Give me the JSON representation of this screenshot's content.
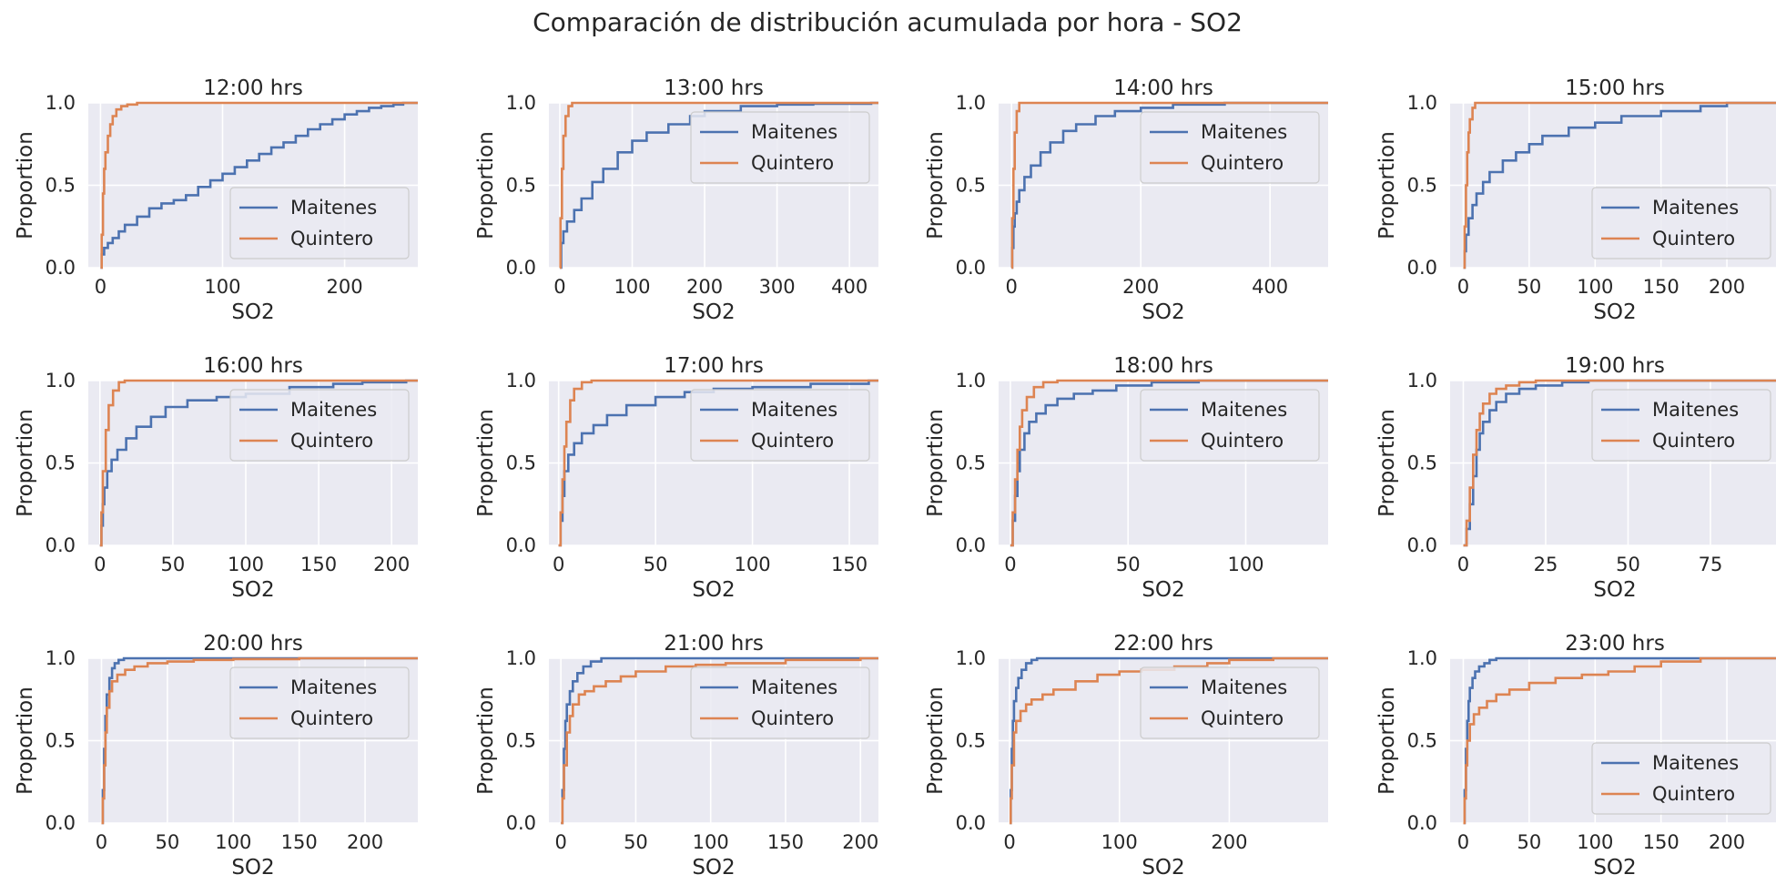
{
  "suptitle": "Comparación de distribución acumulada por hora - SO2",
  "colors": {
    "Maitenes": "#4c72b0",
    "Quintero": "#dd8452",
    "panel_bg": "#eaeaf2",
    "grid": "#ffffff"
  },
  "chart_data": [
    {
      "type": "line",
      "title": "12:00 hrs",
      "xlabel": "SO2",
      "ylabel": "Proportion",
      "xlim": [
        -10,
        260
      ],
      "xticks": [
        0,
        100,
        200
      ],
      "ylim": [
        0,
        1
      ],
      "yticks": [
        0.0,
        0.5,
        1.0
      ],
      "grid": true,
      "legend": "lower-right",
      "series": [
        {
          "name": "Maitenes",
          "x": [
            0,
            1,
            3,
            6,
            10,
            15,
            20,
            30,
            40,
            50,
            60,
            70,
            80,
            90,
            100,
            110,
            120,
            130,
            140,
            150,
            160,
            170,
            180,
            190,
            200,
            210,
            220,
            230,
            240,
            248
          ],
          "y": [
            0,
            0.08,
            0.12,
            0.15,
            0.18,
            0.22,
            0.26,
            0.31,
            0.36,
            0.39,
            0.41,
            0.44,
            0.49,
            0.53,
            0.57,
            0.61,
            0.65,
            0.69,
            0.73,
            0.76,
            0.8,
            0.84,
            0.87,
            0.9,
            0.93,
            0.95,
            0.97,
            0.98,
            0.99,
            1.0
          ]
        },
        {
          "name": "Quintero",
          "x": [
            0,
            1,
            2,
            3,
            4,
            6,
            8,
            10,
            13,
            17,
            22,
            30
          ],
          "y": [
            0,
            0.2,
            0.45,
            0.6,
            0.7,
            0.8,
            0.87,
            0.92,
            0.96,
            0.98,
            0.99,
            1.0
          ]
        }
      ]
    },
    {
      "type": "line",
      "title": "13:00 hrs",
      "xlabel": "SO2",
      "ylabel": "Proportion",
      "xlim": [
        -15,
        440
      ],
      "xticks": [
        0,
        100,
        200,
        300,
        400
      ],
      "ylim": [
        0,
        1
      ],
      "yticks": [
        0.0,
        0.5,
        1.0
      ],
      "grid": true,
      "legend": "upper-right",
      "series": [
        {
          "name": "Maitenes",
          "x": [
            0,
            2,
            5,
            10,
            20,
            30,
            45,
            60,
            80,
            100,
            120,
            150,
            180,
            200,
            250,
            300,
            350,
            430
          ],
          "y": [
            0,
            0.15,
            0.22,
            0.28,
            0.35,
            0.42,
            0.52,
            0.6,
            0.7,
            0.77,
            0.82,
            0.87,
            0.92,
            0.95,
            0.98,
            0.99,
            0.995,
            1.0
          ]
        },
        {
          "name": "Quintero",
          "x": [
            0,
            1,
            3,
            5,
            8,
            12,
            17
          ],
          "y": [
            0,
            0.3,
            0.6,
            0.8,
            0.92,
            0.98,
            1.0
          ]
        }
      ]
    },
    {
      "type": "line",
      "title": "14:00 hrs",
      "xlabel": "SO2",
      "ylabel": "Proportion",
      "xlim": [
        -20,
        490
      ],
      "xticks": [
        0,
        200,
        400
      ],
      "ylim": [
        0,
        1
      ],
      "yticks": [
        0.0,
        0.5,
        1.0
      ],
      "grid": true,
      "legend": "upper-right",
      "series": [
        {
          "name": "Maitenes",
          "x": [
            0,
            1,
            3,
            5,
            8,
            12,
            20,
            30,
            45,
            60,
            80,
            100,
            130,
            160,
            200,
            250,
            330,
            480
          ],
          "y": [
            0,
            0.12,
            0.25,
            0.33,
            0.4,
            0.47,
            0.55,
            0.62,
            0.7,
            0.76,
            0.83,
            0.87,
            0.92,
            0.95,
            0.97,
            0.99,
            1.0,
            1.0
          ]
        },
        {
          "name": "Quintero",
          "x": [
            0,
            1,
            3,
            5,
            8,
            12
          ],
          "y": [
            0,
            0.3,
            0.6,
            0.82,
            0.95,
            1.0
          ]
        }
      ]
    },
    {
      "type": "line",
      "title": "15:00 hrs",
      "xlabel": "SO2",
      "ylabel": "Proportion",
      "xlim": [
        -10,
        240
      ],
      "xticks": [
        0,
        50,
        100,
        150,
        200
      ],
      "ylim": [
        0,
        1
      ],
      "yticks": [
        0.0,
        0.5,
        1.0
      ],
      "grid": true,
      "legend": "lower-right",
      "series": [
        {
          "name": "Maitenes",
          "x": [
            0,
            1,
            2,
            4,
            7,
            10,
            15,
            20,
            30,
            40,
            50,
            60,
            80,
            100,
            120,
            150,
            180,
            200,
            230
          ],
          "y": [
            0,
            0.1,
            0.2,
            0.3,
            0.38,
            0.45,
            0.52,
            0.58,
            0.65,
            0.7,
            0.75,
            0.8,
            0.85,
            0.88,
            0.92,
            0.95,
            0.98,
            1.0,
            1.0
          ]
        },
        {
          "name": "Quintero",
          "x": [
            0,
            1,
            2,
            3,
            4,
            5,
            7,
            9
          ],
          "y": [
            0,
            0.25,
            0.5,
            0.7,
            0.82,
            0.9,
            0.97,
            1.0
          ]
        }
      ]
    },
    {
      "type": "line",
      "title": "16:00 hrs",
      "xlabel": "SO2",
      "ylabel": "Proportion",
      "xlim": [
        -8,
        218
      ],
      "xticks": [
        0,
        50,
        100,
        150,
        200
      ],
      "ylim": [
        0,
        1
      ],
      "yticks": [
        0.0,
        0.5,
        1.0
      ],
      "grid": true,
      "legend": "upper-right",
      "series": [
        {
          "name": "Maitenes",
          "x": [
            0,
            1,
            2,
            3,
            5,
            8,
            12,
            18,
            25,
            35,
            45,
            60,
            80,
            100,
            130,
            160,
            180,
            210
          ],
          "y": [
            0,
            0.12,
            0.25,
            0.35,
            0.45,
            0.52,
            0.58,
            0.65,
            0.72,
            0.78,
            0.84,
            0.88,
            0.9,
            0.92,
            0.96,
            0.98,
            0.99,
            1.0
          ]
        },
        {
          "name": "Quintero",
          "x": [
            0,
            1,
            2,
            4,
            6,
            9,
            13,
            17
          ],
          "y": [
            0,
            0.2,
            0.45,
            0.7,
            0.85,
            0.94,
            0.99,
            1.0
          ]
        }
      ]
    },
    {
      "type": "line",
      "title": "17:00 hrs",
      "xlabel": "SO2",
      "ylabel": "Proportion",
      "xlim": [
        -5,
        165
      ],
      "xticks": [
        0,
        50,
        100,
        150
      ],
      "ylim": [
        0,
        1
      ],
      "yticks": [
        0.0,
        0.5,
        1.0
      ],
      "grid": true,
      "legend": "upper-right",
      "series": [
        {
          "name": "Maitenes",
          "x": [
            0,
            1,
            2,
            3,
            5,
            8,
            12,
            18,
            25,
            35,
            50,
            65,
            80,
            100,
            130,
            160
          ],
          "y": [
            0,
            0.15,
            0.3,
            0.45,
            0.55,
            0.62,
            0.68,
            0.73,
            0.79,
            0.85,
            0.9,
            0.93,
            0.95,
            0.96,
            0.98,
            1.0
          ]
        },
        {
          "name": "Quintero",
          "x": [
            0,
            1,
            2,
            3,
            4,
            6,
            8,
            12,
            17
          ],
          "y": [
            0,
            0.2,
            0.4,
            0.6,
            0.75,
            0.88,
            0.95,
            0.99,
            1.0
          ]
        }
      ]
    },
    {
      "type": "line",
      "title": "18:00 hrs",
      "xlabel": "SO2",
      "ylabel": "Proportion",
      "xlim": [
        -5,
        135
      ],
      "xticks": [
        0,
        50,
        100
      ],
      "ylim": [
        0,
        1
      ],
      "yticks": [
        0.0,
        0.5,
        1.0
      ],
      "grid": true,
      "legend": "upper-right",
      "series": [
        {
          "name": "Maitenes",
          "x": [
            0,
            1,
            2,
            3,
            4,
            6,
            8,
            11,
            15,
            20,
            27,
            35,
            45,
            60,
            80,
            130
          ],
          "y": [
            0,
            0.15,
            0.3,
            0.45,
            0.58,
            0.68,
            0.75,
            0.8,
            0.85,
            0.89,
            0.92,
            0.94,
            0.97,
            0.99,
            1.0,
            1.0
          ]
        },
        {
          "name": "Quintero",
          "x": [
            0,
            1,
            2,
            3,
            4,
            5,
            7,
            10,
            14,
            20
          ],
          "y": [
            0,
            0.2,
            0.4,
            0.58,
            0.72,
            0.82,
            0.9,
            0.96,
            0.99,
            1.0
          ]
        }
      ]
    },
    {
      "type": "line",
      "title": "19:00 hrs",
      "xlabel": "SO2",
      "ylabel": "Proportion",
      "xlim": [
        -4,
        96
      ],
      "xticks": [
        0,
        25,
        50,
        75
      ],
      "ylim": [
        0,
        1
      ],
      "yticks": [
        0.0,
        0.5,
        1.0
      ],
      "grid": true,
      "legend": "upper-right",
      "series": [
        {
          "name": "Maitenes",
          "x": [
            0,
            1,
            2,
            3,
            4,
            5,
            6,
            8,
            10,
            13,
            17,
            22,
            30,
            38,
            50,
            92
          ],
          "y": [
            0,
            0.1,
            0.25,
            0.42,
            0.58,
            0.68,
            0.75,
            0.82,
            0.87,
            0.92,
            0.95,
            0.97,
            0.99,
            1.0,
            1.0,
            1.0
          ]
        },
        {
          "name": "Quintero",
          "x": [
            0,
            1,
            2,
            3,
            4,
            5,
            6,
            8,
            10,
            13,
            17,
            22,
            30,
            92
          ],
          "y": [
            0,
            0.15,
            0.35,
            0.55,
            0.7,
            0.8,
            0.86,
            0.92,
            0.95,
            0.97,
            0.99,
            1.0,
            1.0,
            1.0
          ]
        }
      ]
    },
    {
      "type": "line",
      "title": "20:00 hrs",
      "xlabel": "SO2",
      "ylabel": "Proportion",
      "xlim": [
        -10,
        240
      ],
      "xticks": [
        0,
        50,
        100,
        150,
        200
      ],
      "ylim": [
        0,
        1
      ],
      "yticks": [
        0.0,
        0.5,
        1.0
      ],
      "grid": true,
      "legend": "upper-right",
      "series": [
        {
          "name": "Maitenes",
          "x": [
            0,
            1,
            2,
            3,
            4,
            6,
            8,
            10,
            13,
            17
          ],
          "y": [
            0,
            0.2,
            0.45,
            0.65,
            0.78,
            0.88,
            0.94,
            0.97,
            0.99,
            1.0
          ]
        },
        {
          "name": "Quintero",
          "x": [
            0,
            1,
            2,
            3,
            4,
            6,
            8,
            12,
            18,
            25,
            35,
            50,
            70,
            100,
            150,
            230
          ],
          "y": [
            0,
            0.15,
            0.35,
            0.55,
            0.7,
            0.8,
            0.86,
            0.9,
            0.93,
            0.95,
            0.97,
            0.98,
            0.99,
            0.995,
            1.0,
            1.0
          ]
        }
      ]
    },
    {
      "type": "line",
      "title": "21:00 hrs",
      "xlabel": "SO2",
      "ylabel": "Proportion",
      "xlim": [
        -8,
        212
      ],
      "xticks": [
        0,
        50,
        100,
        150,
        200
      ],
      "ylim": [
        0,
        1
      ],
      "yticks": [
        0.0,
        0.5,
        1.0
      ],
      "grid": true,
      "legend": "upper-right",
      "series": [
        {
          "name": "Maitenes",
          "x": [
            0,
            1,
            2,
            3,
            4,
            6,
            8,
            11,
            15,
            20,
            27,
            35
          ],
          "y": [
            0,
            0.2,
            0.45,
            0.62,
            0.72,
            0.8,
            0.86,
            0.91,
            0.95,
            0.98,
            1.0,
            1.0
          ]
        },
        {
          "name": "Quintero",
          "x": [
            0,
            1,
            2,
            4,
            6,
            8,
            12,
            16,
            22,
            30,
            40,
            50,
            70,
            90,
            110,
            150,
            200
          ],
          "y": [
            0,
            0.15,
            0.35,
            0.55,
            0.65,
            0.72,
            0.78,
            0.8,
            0.83,
            0.86,
            0.89,
            0.92,
            0.95,
            0.96,
            0.97,
            0.99,
            1.0
          ]
        }
      ]
    },
    {
      "type": "line",
      "title": "22:00 hrs",
      "xlabel": "SO2",
      "ylabel": "Proportion",
      "xlim": [
        -10,
        290
      ],
      "xticks": [
        0,
        100,
        200
      ],
      "ylim": [
        0,
        1
      ],
      "yticks": [
        0.0,
        0.5,
        1.0
      ],
      "grid": true,
      "legend": "upper-right",
      "series": [
        {
          "name": "Maitenes",
          "x": [
            0,
            1,
            2,
            3,
            4,
            6,
            8,
            11,
            15,
            20,
            25
          ],
          "y": [
            0,
            0.2,
            0.45,
            0.62,
            0.74,
            0.82,
            0.88,
            0.93,
            0.97,
            0.99,
            1.0
          ]
        },
        {
          "name": "Quintero",
          "x": [
            0,
            1,
            2,
            4,
            6,
            10,
            15,
            20,
            30,
            40,
            60,
            80,
            100,
            120,
            150,
            180,
            200,
            240,
            280
          ],
          "y": [
            0,
            0.15,
            0.35,
            0.55,
            0.62,
            0.68,
            0.72,
            0.75,
            0.78,
            0.81,
            0.86,
            0.9,
            0.92,
            0.93,
            0.95,
            0.97,
            0.99,
            1.0,
            1.0
          ]
        }
      ]
    },
    {
      "type": "line",
      "title": "23:00 hrs",
      "xlabel": "SO2",
      "ylabel": "Proportion",
      "xlim": [
        -10,
        240
      ],
      "xticks": [
        0,
        50,
        100,
        150,
        200
      ],
      "ylim": [
        0,
        1
      ],
      "yticks": [
        0.0,
        0.5,
        1.0
      ],
      "grid": true,
      "legend": "lower-right",
      "series": [
        {
          "name": "Maitenes",
          "x": [
            0,
            1,
            2,
            3,
            4,
            5,
            7,
            9,
            12,
            16,
            20,
            25,
            30
          ],
          "y": [
            0,
            0.2,
            0.45,
            0.62,
            0.74,
            0.82,
            0.88,
            0.92,
            0.95,
            0.97,
            0.99,
            1.0,
            1.0
          ]
        },
        {
          "name": "Quintero",
          "x": [
            0,
            1,
            2,
            3,
            5,
            8,
            12,
            18,
            25,
            35,
            50,
            70,
            90,
            110,
            130,
            150,
            180,
            230
          ],
          "y": [
            0,
            0.15,
            0.35,
            0.5,
            0.6,
            0.66,
            0.7,
            0.74,
            0.78,
            0.81,
            0.85,
            0.88,
            0.9,
            0.92,
            0.95,
            0.98,
            1.0,
            1.0
          ]
        }
      ]
    }
  ]
}
